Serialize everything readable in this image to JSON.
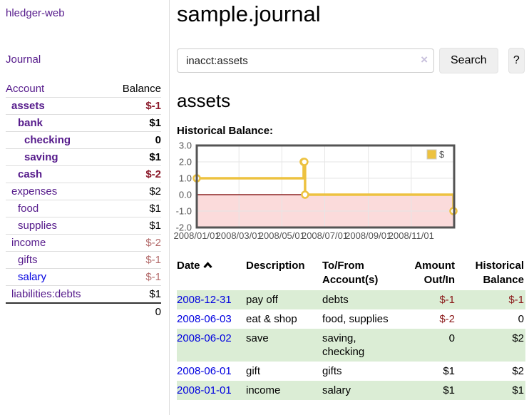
{
  "colors": {
    "link_visited_purple": "#551A8B",
    "link_blue": "#0000E0",
    "negative_dark": "#8b1a2b",
    "negative_muted": "#b36a6a",
    "table_stripe_green": "#dbedd5",
    "series_gold": "#EDC240",
    "chart_border": "#545454"
  },
  "sidebar": {
    "app_title": "hledger-web",
    "nav_journal": "Journal",
    "table": {
      "account_header": "Account",
      "balance_header": "Balance",
      "rows": [
        {
          "name": "assets",
          "balance": "$-1"
        },
        {
          "name": "bank",
          "balance": "$1"
        },
        {
          "name": "checking",
          "balance": "0"
        },
        {
          "name": "saving",
          "balance": "$1"
        },
        {
          "name": "cash",
          "balance": "$-2"
        },
        {
          "name": "expenses",
          "balance": "$2"
        },
        {
          "name": "food",
          "balance": "$1"
        },
        {
          "name": "supplies",
          "balance": "$1"
        },
        {
          "name": "income",
          "balance": "$-2"
        },
        {
          "name": "gifts",
          "balance": "$-1"
        },
        {
          "name": "salary",
          "balance": "$-1"
        },
        {
          "name": "liabilities:debts",
          "balance": "$1"
        }
      ],
      "total": "0"
    }
  },
  "header": {
    "title": "sample.journal"
  },
  "search": {
    "value": "inacct:assets",
    "clear_icon": "×",
    "search_label": "Search",
    "help_label": "?"
  },
  "main": {
    "account_heading": "assets",
    "chart_title": "Historical Balance:"
  },
  "chart_data": {
    "type": "line",
    "title": "Historical Balance",
    "step": true,
    "series": [
      {
        "name": "$",
        "color": "#EDC240",
        "points": [
          [
            "2008-01-01",
            1
          ],
          [
            "2008-06-01",
            2
          ],
          [
            "2008-06-02",
            2
          ],
          [
            "2008-06-03",
            0
          ],
          [
            "2008-12-31",
            -1
          ]
        ]
      }
    ],
    "ylim": [
      -2,
      3
    ],
    "yticks": [
      3.0,
      2.0,
      1.0,
      0.0,
      -1.0,
      -2.0
    ],
    "x_range": [
      "2008-01-01",
      "2009-01-01"
    ],
    "xticks": [
      {
        "date": "2008-01-01",
        "label": "2008/01/01"
      },
      {
        "date": "2008-03-01",
        "label": "2008/03/01"
      },
      {
        "date": "2008-05-01",
        "label": "2008/05/01"
      },
      {
        "date": "2008-07-01",
        "label": "2008/07/01"
      },
      {
        "date": "2008-09-01",
        "label": "2008/09/01"
      },
      {
        "date": "2008-11-01",
        "label": "2008/11/01"
      }
    ],
    "grid": true,
    "legend_position": "top-right",
    "negative_region_fill": "#fbdbdb",
    "zero_line_color": "#8b2323"
  },
  "transactions": {
    "headers": [
      "Date",
      "Description",
      "To/From Account(s)",
      "Amount Out/In",
      "Historical Balance"
    ],
    "rows": [
      {
        "date": "2008-12-31",
        "description": "pay off",
        "accounts": "debts",
        "amount": "$-1",
        "balance": "$-1"
      },
      {
        "date": "2008-06-03",
        "description": "eat & shop",
        "accounts": "food, supplies",
        "amount": "$-2",
        "balance": "0"
      },
      {
        "date": "2008-06-02",
        "description": "save",
        "accounts": "saving, checking",
        "amount": "0",
        "balance": "$2"
      },
      {
        "date": "2008-06-01",
        "description": "gift",
        "accounts": "gifts",
        "amount": "$1",
        "balance": "$2"
      },
      {
        "date": "2008-01-01",
        "description": "income",
        "accounts": "salary",
        "amount": "$1",
        "balance": "$1"
      }
    ]
  }
}
